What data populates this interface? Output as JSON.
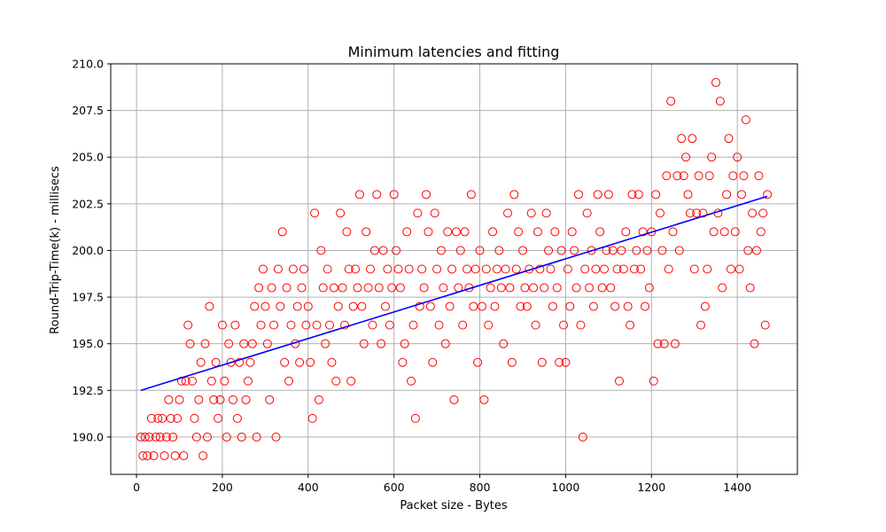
{
  "chart_data": {
    "type": "scatter",
    "title": "Minimum latencies and fitting",
    "xlabel": "Packet size - Bytes",
    "ylabel": "Round-Trip-Time(k) - millisecs",
    "xlim": [
      -60,
      1540
    ],
    "ylim": [
      188.0,
      210.0
    ],
    "xticks": [
      0,
      200,
      400,
      600,
      800,
      1000,
      1200,
      1400
    ],
    "xtick_labels": [
      "0",
      "200",
      "400",
      "600",
      "800",
      "1000",
      "1200",
      "1400"
    ],
    "yticks": [
      190.0,
      192.5,
      195.0,
      197.5,
      200.0,
      202.5,
      205.0,
      207.5,
      210.0
    ],
    "ytick_labels": [
      "190.0",
      "192.5",
      "195.0",
      "197.5",
      "200.0",
      "202.5",
      "205.0",
      "207.5",
      "210.0"
    ],
    "grid": true,
    "colors": {
      "points": "#ff0000",
      "fit": "#0000ff"
    },
    "series": [
      {
        "kind": "scatter",
        "marker": "open-circle",
        "points": [
          [
            10,
            190
          ],
          [
            15,
            189
          ],
          [
            20,
            190
          ],
          [
            25,
            189
          ],
          [
            30,
            190
          ],
          [
            35,
            191
          ],
          [
            40,
            189
          ],
          [
            45,
            190
          ],
          [
            50,
            191
          ],
          [
            55,
            190
          ],
          [
            60,
            191
          ],
          [
            65,
            189
          ],
          [
            70,
            190
          ],
          [
            75,
            192
          ],
          [
            80,
            191
          ],
          [
            85,
            190
          ],
          [
            90,
            189
          ],
          [
            95,
            191
          ],
          [
            100,
            192
          ],
          [
            105,
            193
          ],
          [
            110,
            189
          ],
          [
            115,
            193
          ],
          [
            120,
            196
          ],
          [
            125,
            195
          ],
          [
            130,
            193
          ],
          [
            135,
            191
          ],
          [
            140,
            190
          ],
          [
            145,
            192
          ],
          [
            150,
            194
          ],
          [
            155,
            189
          ],
          [
            160,
            195
          ],
          [
            165,
            190
          ],
          [
            170,
            197
          ],
          [
            175,
            193
          ],
          [
            180,
            192
          ],
          [
            185,
            194
          ],
          [
            190,
            191
          ],
          [
            195,
            192
          ],
          [
            200,
            196
          ],
          [
            205,
            193
          ],
          [
            210,
            190
          ],
          [
            215,
            195
          ],
          [
            220,
            194
          ],
          [
            225,
            192
          ],
          [
            230,
            196
          ],
          [
            235,
            191
          ],
          [
            240,
            194
          ],
          [
            245,
            190
          ],
          [
            250,
            195
          ],
          [
            255,
            192
          ],
          [
            260,
            193
          ],
          [
            265,
            194
          ],
          [
            270,
            195
          ],
          [
            275,
            197
          ],
          [
            280,
            190
          ],
          [
            285,
            198
          ],
          [
            290,
            196
          ],
          [
            295,
            199
          ],
          [
            300,
            197
          ],
          [
            305,
            195
          ],
          [
            310,
            192
          ],
          [
            315,
            198
          ],
          [
            320,
            196
          ],
          [
            325,
            190
          ],
          [
            330,
            199
          ],
          [
            335,
            197
          ],
          [
            340,
            201
          ],
          [
            345,
            194
          ],
          [
            350,
            198
          ],
          [
            355,
            193
          ],
          [
            360,
            196
          ],
          [
            365,
            199
          ],
          [
            370,
            195
          ],
          [
            375,
            197
          ],
          [
            380,
            194
          ],
          [
            385,
            198
          ],
          [
            390,
            199
          ],
          [
            395,
            196
          ],
          [
            400,
            197
          ],
          [
            405,
            194
          ],
          [
            410,
            191
          ],
          [
            415,
            202
          ],
          [
            420,
            196
          ],
          [
            425,
            192
          ],
          [
            430,
            200
          ],
          [
            435,
            198
          ],
          [
            440,
            195
          ],
          [
            445,
            199
          ],
          [
            450,
            196
          ],
          [
            455,
            194
          ],
          [
            460,
            198
          ],
          [
            465,
            193
          ],
          [
            470,
            197
          ],
          [
            475,
            202
          ],
          [
            480,
            198
          ],
          [
            485,
            196
          ],
          [
            490,
            201
          ],
          [
            495,
            199
          ],
          [
            500,
            193
          ],
          [
            505,
            197
          ],
          [
            510,
            199
          ],
          [
            515,
            198
          ],
          [
            520,
            203
          ],
          [
            525,
            197
          ],
          [
            530,
            195
          ],
          [
            535,
            201
          ],
          [
            540,
            198
          ],
          [
            545,
            199
          ],
          [
            550,
            196
          ],
          [
            555,
            200
          ],
          [
            560,
            203
          ],
          [
            565,
            198
          ],
          [
            570,
            195
          ],
          [
            575,
            200
          ],
          [
            580,
            197
          ],
          [
            585,
            199
          ],
          [
            590,
            196
          ],
          [
            595,
            198
          ],
          [
            600,
            203
          ],
          [
            605,
            200
          ],
          [
            610,
            199
          ],
          [
            615,
            198
          ],
          [
            620,
            194
          ],
          [
            625,
            195
          ],
          [
            630,
            201
          ],
          [
            635,
            199
          ],
          [
            640,
            193
          ],
          [
            645,
            196
          ],
          [
            650,
            191
          ],
          [
            655,
            202
          ],
          [
            660,
            197
          ],
          [
            665,
            199
          ],
          [
            670,
            198
          ],
          [
            675,
            203
          ],
          [
            680,
            201
          ],
          [
            685,
            197
          ],
          [
            690,
            194
          ],
          [
            695,
            202
          ],
          [
            700,
            199
          ],
          [
            705,
            196
          ],
          [
            710,
            200
          ],
          [
            715,
            198
          ],
          [
            720,
            195
          ],
          [
            725,
            201
          ],
          [
            730,
            197
          ],
          [
            735,
            199
          ],
          [
            740,
            192
          ],
          [
            745,
            201
          ],
          [
            750,
            198
          ],
          [
            755,
            200
          ],
          [
            760,
            196
          ],
          [
            765,
            201
          ],
          [
            770,
            199
          ],
          [
            775,
            198
          ],
          [
            780,
            203
          ],
          [
            785,
            197
          ],
          [
            790,
            199
          ],
          [
            795,
            194
          ],
          [
            800,
            200
          ],
          [
            805,
            197
          ],
          [
            810,
            192
          ],
          [
            815,
            199
          ],
          [
            820,
            196
          ],
          [
            825,
            198
          ],
          [
            830,
            201
          ],
          [
            835,
            197
          ],
          [
            840,
            199
          ],
          [
            845,
            200
          ],
          [
            850,
            198
          ],
          [
            855,
            195
          ],
          [
            860,
            199
          ],
          [
            865,
            202
          ],
          [
            870,
            198
          ],
          [
            875,
            194
          ],
          [
            880,
            203
          ],
          [
            885,
            199
          ],
          [
            890,
            201
          ],
          [
            895,
            197
          ],
          [
            900,
            200
          ],
          [
            905,
            198
          ],
          [
            910,
            197
          ],
          [
            915,
            199
          ],
          [
            920,
            202
          ],
          [
            925,
            198
          ],
          [
            930,
            196
          ],
          [
            935,
            201
          ],
          [
            940,
            199
          ],
          [
            945,
            194
          ],
          [
            950,
            198
          ],
          [
            955,
            202
          ],
          [
            960,
            200
          ],
          [
            965,
            199
          ],
          [
            970,
            197
          ],
          [
            975,
            201
          ],
          [
            980,
            198
          ],
          [
            985,
            194
          ],
          [
            990,
            200
          ],
          [
            995,
            196
          ],
          [
            1000,
            194
          ],
          [
            1005,
            199
          ],
          [
            1010,
            197
          ],
          [
            1015,
            201
          ],
          [
            1020,
            200
          ],
          [
            1025,
            198
          ],
          [
            1030,
            203
          ],
          [
            1035,
            196
          ],
          [
            1040,
            190
          ],
          [
            1045,
            199
          ],
          [
            1050,
            202
          ],
          [
            1055,
            198
          ],
          [
            1060,
            200
          ],
          [
            1065,
            197
          ],
          [
            1070,
            199
          ],
          [
            1075,
            203
          ],
          [
            1080,
            201
          ],
          [
            1085,
            198
          ],
          [
            1090,
            199
          ],
          [
            1095,
            200
          ],
          [
            1100,
            203
          ],
          [
            1105,
            198
          ],
          [
            1110,
            200
          ],
          [
            1115,
            197
          ],
          [
            1120,
            199
          ],
          [
            1125,
            193
          ],
          [
            1130,
            200
          ],
          [
            1135,
            199
          ],
          [
            1140,
            201
          ],
          [
            1145,
            197
          ],
          [
            1150,
            196
          ],
          [
            1155,
            203
          ],
          [
            1160,
            199
          ],
          [
            1165,
            200
          ],
          [
            1170,
            203
          ],
          [
            1175,
            199
          ],
          [
            1180,
            201
          ],
          [
            1185,
            197
          ],
          [
            1190,
            200
          ],
          [
            1195,
            198
          ],
          [
            1200,
            201
          ],
          [
            1205,
            193
          ],
          [
            1210,
            203
          ],
          [
            1215,
            195
          ],
          [
            1220,
            202
          ],
          [
            1225,
            200
          ],
          [
            1230,
            195
          ],
          [
            1235,
            204
          ],
          [
            1240,
            199
          ],
          [
            1245,
            208
          ],
          [
            1250,
            201
          ],
          [
            1255,
            195
          ],
          [
            1260,
            204
          ],
          [
            1265,
            200
          ],
          [
            1270,
            206
          ],
          [
            1275,
            204
          ],
          [
            1280,
            205
          ],
          [
            1285,
            203
          ],
          [
            1290,
            202
          ],
          [
            1295,
            206
          ],
          [
            1300,
            199
          ],
          [
            1305,
            202
          ],
          [
            1310,
            204
          ],
          [
            1315,
            196
          ],
          [
            1320,
            202
          ],
          [
            1325,
            197
          ],
          [
            1330,
            199
          ],
          [
            1335,
            204
          ],
          [
            1340,
            205
          ],
          [
            1345,
            201
          ],
          [
            1350,
            209
          ],
          [
            1355,
            202
          ],
          [
            1360,
            208
          ],
          [
            1365,
            198
          ],
          [
            1370,
            201
          ],
          [
            1375,
            203
          ],
          [
            1380,
            206
          ],
          [
            1385,
            199
          ],
          [
            1390,
            204
          ],
          [
            1395,
            201
          ],
          [
            1400,
            205
          ],
          [
            1405,
            199
          ],
          [
            1410,
            203
          ],
          [
            1415,
            204
          ],
          [
            1420,
            207
          ],
          [
            1425,
            200
          ],
          [
            1430,
            198
          ],
          [
            1435,
            202
          ],
          [
            1440,
            195
          ],
          [
            1445,
            200
          ],
          [
            1450,
            204
          ],
          [
            1455,
            201
          ],
          [
            1460,
            202
          ],
          [
            1465,
            196
          ],
          [
            1470,
            203
          ]
        ]
      },
      {
        "kind": "line",
        "points": [
          [
            10,
            192.5
          ],
          [
            1470,
            202.9
          ]
        ]
      }
    ]
  }
}
